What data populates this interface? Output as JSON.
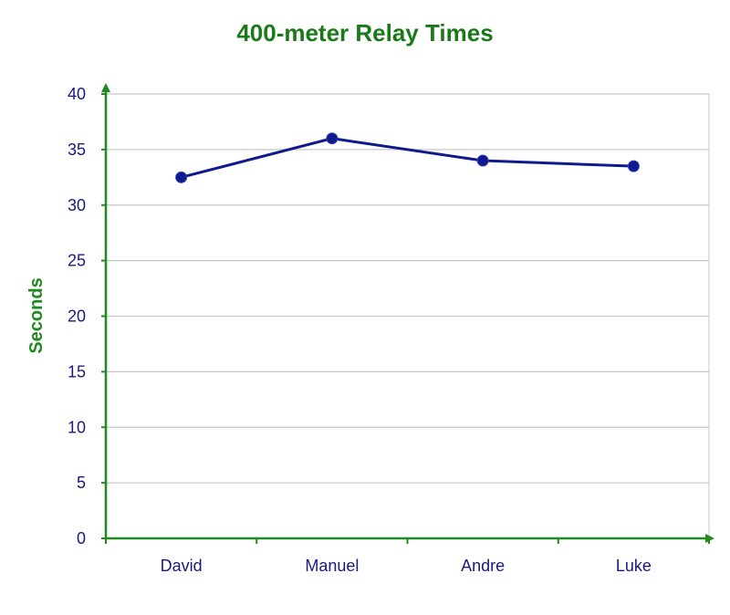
{
  "chart_data": {
    "type": "line",
    "title": "400-meter Relay Times",
    "xlabel": "",
    "ylabel": "Seconds",
    "categories": [
      "David",
      "Manuel",
      "Andre",
      "Luke"
    ],
    "series": [
      {
        "values": [
          32.5,
          36,
          34,
          33.5
        ]
      }
    ],
    "ylim": [
      0,
      40
    ],
    "yticks": [
      0,
      5,
      10,
      15,
      20,
      25,
      30,
      35,
      40
    ],
    "grid": true,
    "colors": {
      "title": "#1a7a1a",
      "axis": "#1f8a1f",
      "line": "#0f1a8c",
      "tick_text": "#1a1a80",
      "grid": "#c8c8c8"
    }
  }
}
